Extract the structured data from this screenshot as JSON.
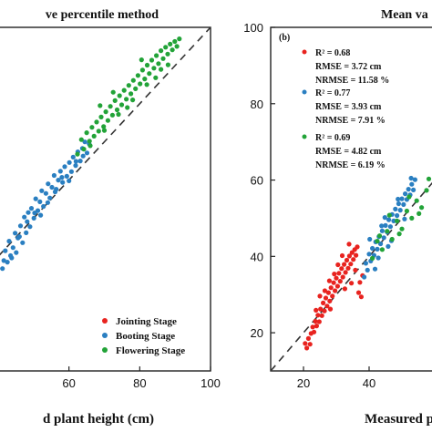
{
  "colors": {
    "jointing": "#e8231f",
    "booting": "#2a7fc1",
    "flowering": "#22a338",
    "frame": "#222222",
    "reference_line": "#333333"
  },
  "chart_data": [
    {
      "panel": "left",
      "type": "scatter",
      "title": "ve percentile method",
      "xlabel": "d plant height (cm)",
      "ylabel": "",
      "xlim": [
        40,
        100
      ],
      "ylim": [
        10,
        100
      ],
      "xticks": [
        "60",
        "80",
        "100"
      ],
      "yticks": [],
      "reference_line": "1:1 dashed",
      "legend_position": "bottom-right",
      "series": [
        {
          "name": "Jointing Stage",
          "color_key": "jointing",
          "points": []
        },
        {
          "name": "Booting Stage",
          "color_key": "booting",
          "points": [
            [
              40.5,
              37.2
            ],
            [
              41.2,
              36.8
            ],
            [
              42.0,
              41.5
            ],
            [
              42.6,
              38.5
            ],
            [
              43.1,
              44.0
            ],
            [
              43.5,
              40.2
            ],
            [
              44.2,
              42.3
            ],
            [
              44.8,
              46.1
            ],
            [
              45.1,
              41.0
            ],
            [
              45.6,
              44.8
            ],
            [
              46.3,
              48.0
            ],
            [
              46.9,
              43.6
            ],
            [
              47.4,
              50.3
            ],
            [
              47.9,
              46.2
            ],
            [
              48.5,
              51.5
            ],
            [
              49.0,
              47.8
            ],
            [
              49.4,
              52.6
            ],
            [
              50.1,
              50.0
            ],
            [
              50.6,
              55.1
            ],
            [
              51.2,
              52.0
            ],
            [
              51.8,
              54.3
            ],
            [
              52.3,
              57.2
            ],
            [
              52.8,
              53.1
            ],
            [
              53.5,
              56.5
            ],
            [
              54.1,
              59.0
            ],
            [
              54.6,
              55.3
            ],
            [
              55.2,
              58.1
            ],
            [
              55.8,
              61.2
            ],
            [
              56.4,
              57.6
            ],
            [
              57.0,
              60.0
            ],
            [
              57.6,
              62.3
            ],
            [
              58.2,
              59.4
            ],
            [
              58.8,
              63.5
            ],
            [
              59.4,
              61.0
            ],
            [
              60.1,
              64.6
            ],
            [
              60.7,
              62.2
            ],
            [
              61.2,
              66.0
            ],
            [
              61.9,
              63.8
            ],
            [
              62.5,
              67.4
            ],
            [
              63.2,
              65.0
            ],
            [
              63.8,
              68.3
            ],
            [
              64.5,
              70.0
            ],
            [
              65.1,
              67.1
            ],
            [
              65.7,
              69.5
            ],
            [
              41.6,
              38.9
            ],
            [
              43.8,
              39.6
            ],
            [
              46.0,
              45.2
            ],
            [
              48.2,
              49.1
            ],
            [
              50.3,
              51.4
            ],
            [
              52.0,
              50.8
            ],
            [
              54.0,
              54.1
            ],
            [
              56.1,
              56.9
            ],
            [
              58.0,
              60.7
            ],
            [
              60.0,
              59.8
            ],
            [
              62.0,
              64.9
            ],
            [
              64.0,
              66.3
            ]
          ]
        },
        {
          "name": "Flowering Stage",
          "color_key": "flowering",
          "points": [
            [
              62.4,
              66.8
            ],
            [
              63.5,
              70.6
            ],
            [
              64.2,
              68.1
            ],
            [
              65.0,
              72.4
            ],
            [
              65.8,
              70.2
            ],
            [
              66.5,
              73.8
            ],
            [
              67.1,
              71.5
            ],
            [
              67.8,
              75.2
            ],
            [
              68.4,
              72.8
            ],
            [
              69.1,
              76.5
            ],
            [
              69.8,
              74.0
            ],
            [
              70.4,
              77.9
            ],
            [
              71.0,
              75.6
            ],
            [
              71.7,
              79.3
            ],
            [
              72.3,
              77.0
            ],
            [
              73.0,
              80.8
            ],
            [
              73.6,
              78.4
            ],
            [
              74.3,
              82.1
            ],
            [
              74.9,
              79.7
            ],
            [
              75.6,
              83.5
            ],
            [
              76.2,
              81.2
            ],
            [
              76.9,
              84.8
            ],
            [
              77.5,
              82.6
            ],
            [
              78.2,
              86.1
            ],
            [
              78.8,
              83.9
            ],
            [
              79.5,
              87.4
            ],
            [
              80.1,
              85.2
            ],
            [
              80.8,
              88.8
            ],
            [
              81.4,
              86.5
            ],
            [
              82.1,
              90.1
            ],
            [
              82.7,
              87.9
            ],
            [
              83.4,
              91.4
            ],
            [
              84.0,
              89.3
            ],
            [
              84.7,
              92.6
            ],
            [
              85.3,
              90.5
            ],
            [
              86.0,
              93.9
            ],
            [
              86.6,
              91.8
            ],
            [
              87.3,
              94.8
            ],
            [
              87.9,
              93.0
            ],
            [
              88.6,
              95.6
            ],
            [
              89.2,
              94.1
            ],
            [
              89.9,
              96.3
            ],
            [
              90.5,
              95.0
            ],
            [
              91.2,
              97.0
            ],
            [
              66.0,
              69.0
            ],
            [
              70.0,
              73.0
            ],
            [
              74.0,
              77.2
            ],
            [
              78.0,
              81.0
            ],
            [
              82.0,
              85.0
            ],
            [
              86.0,
              89.0
            ],
            [
              72.5,
              83.0
            ],
            [
              76.5,
              79.0
            ],
            [
              80.5,
              91.5
            ],
            [
              84.5,
              86.8
            ],
            [
              68.8,
              79.5
            ],
            [
              88.0,
              90.2
            ]
          ]
        }
      ]
    },
    {
      "panel": "right",
      "panel_label": "(b)",
      "type": "scatter",
      "title": "Mean va",
      "xlabel": "Measured p",
      "ylabel": "",
      "xlim": [
        10,
        60
      ],
      "ylim": [
        10,
        100
      ],
      "xticks": [
        "20",
        "40"
      ],
      "yticks": [
        "20",
        "40",
        "60",
        "80",
        "100"
      ],
      "reference_line": "1:1 dashed",
      "stats": [
        {
          "color_key": "jointing",
          "r2": "R² = 0.68",
          "rmse": "RMSE = 3.72 cm",
          "nrmse": "NRMSE = 11.58 %"
        },
        {
          "color_key": "booting",
          "r2": "R² = 0.77",
          "rmse": "RMSE = 3.93 cm",
          "nrmse": "NRMSE = 7.91 %"
        },
        {
          "color_key": "flowering",
          "r2": "R² = 0.69",
          "rmse": "RMSE = 4.82 cm",
          "nrmse": "NRMSE = 6.19 %"
        }
      ],
      "series": [
        {
          "name": "Jointing Stage",
          "color_key": "jointing",
          "points": [
            [
              20.5,
              17.2
            ],
            [
              21.0,
              16.0
            ],
            [
              21.5,
              18.5
            ],
            [
              22.0,
              17.0
            ],
            [
              22.3,
              19.8
            ],
            [
              22.8,
              21.5
            ],
            [
              23.2,
              20.2
            ],
            [
              23.6,
              23.0
            ],
            [
              24.0,
              21.8
            ],
            [
              24.4,
              24.6
            ],
            [
              24.8,
              22.9
            ],
            [
              25.2,
              26.2
            ],
            [
              25.6,
              24.5
            ],
            [
              26.0,
              27.8
            ],
            [
              26.4,
              25.7
            ],
            [
              26.8,
              29.1
            ],
            [
              27.2,
              27.0
            ],
            [
              27.6,
              30.5
            ],
            [
              28.0,
              28.3
            ],
            [
              28.4,
              31.8
            ],
            [
              28.8,
              29.6
            ],
            [
              29.2,
              33.1
            ],
            [
              29.6,
              31.0
            ],
            [
              30.0,
              34.3
            ],
            [
              30.4,
              32.2
            ],
            [
              30.8,
              35.6
            ],
            [
              31.2,
              33.5
            ],
            [
              31.6,
              36.8
            ],
            [
              32.0,
              34.6
            ],
            [
              32.4,
              37.9
            ],
            [
              32.8,
              35.8
            ],
            [
              33.2,
              39.0
            ],
            [
              33.6,
              36.9
            ],
            [
              34.0,
              40.1
            ],
            [
              34.4,
              38.0
            ],
            [
              34.8,
              41.0
            ],
            [
              35.2,
              39.2
            ],
            [
              35.6,
              41.8
            ],
            [
              36.0,
              40.3
            ],
            [
              36.4,
              42.5
            ],
            [
              36.8,
              30.5
            ],
            [
              37.2,
              33.2
            ],
            [
              37.6,
              29.4
            ],
            [
              38.0,
              35.0
            ],
            [
              26.5,
              31.0
            ],
            [
              28.2,
              26.2
            ],
            [
              30.5,
              37.8
            ],
            [
              32.6,
              31.5
            ],
            [
              34.6,
              33.0
            ],
            [
              25.0,
              29.6
            ],
            [
              29.4,
              35.4
            ],
            [
              33.9,
              43.2
            ],
            [
              23.8,
              25.9
            ],
            [
              27.9,
              33.6
            ],
            [
              31.8,
              40.2
            ],
            [
              35.8,
              36.4
            ]
          ]
        },
        {
          "name": "Booting Stage",
          "color_key": "booting",
          "points": [
            [
              38.5,
              34.6
            ],
            [
              39.0,
              38.2
            ],
            [
              39.5,
              36.4
            ],
            [
              40.0,
              40.6
            ],
            [
              40.5,
              38.8
            ],
            [
              41.0,
              42.1
            ],
            [
              41.5,
              40.3
            ],
            [
              42.0,
              43.8
            ],
            [
              42.5,
              41.9
            ],
            [
              43.0,
              45.2
            ],
            [
              43.5,
              43.3
            ],
            [
              44.0,
              46.7
            ],
            [
              44.5,
              44.9
            ],
            [
              45.0,
              48.1
            ],
            [
              45.5,
              46.4
            ],
            [
              46.0,
              49.6
            ],
            [
              46.5,
              47.8
            ],
            [
              47.0,
              51.0
            ],
            [
              47.5,
              49.3
            ],
            [
              48.0,
              52.4
            ],
            [
              48.5,
              50.7
            ],
            [
              49.0,
              53.8
            ],
            [
              49.5,
              52.1
            ],
            [
              50.0,
              55.1
            ],
            [
              50.5,
              53.6
            ],
            [
              51.0,
              56.4
            ],
            [
              51.5,
              54.9
            ],
            [
              52.0,
              57.6
            ],
            [
              52.5,
              56.1
            ],
            [
              53.0,
              58.9
            ],
            [
              53.5,
              57.4
            ],
            [
              54.0,
              60.1
            ],
            [
              40.2,
              44.5
            ],
            [
              42.8,
              39.6
            ],
            [
              44.8,
              50.2
            ],
            [
              46.8,
              44.1
            ],
            [
              48.8,
              55.0
            ],
            [
              50.8,
              49.8
            ],
            [
              52.8,
              60.5
            ],
            [
              41.8,
              36.7
            ],
            [
              43.8,
              48.0
            ],
            [
              45.8,
              42.6
            ]
          ]
        },
        {
          "name": "Flowering Stage",
          "color_key": "flowering",
          "points": [
            [
              41.0,
              39.5
            ],
            [
              42.5,
              44.0
            ],
            [
              44.0,
              41.8
            ],
            [
              45.5,
              46.6
            ],
            [
              47.0,
              44.5
            ],
            [
              48.5,
              49.3
            ],
            [
              50.0,
              47.2
            ],
            [
              51.5,
              51.9
            ],
            [
              53.0,
              50.0
            ],
            [
              54.5,
              54.6
            ],
            [
              56.0,
              52.8
            ],
            [
              57.5,
              57.3
            ],
            [
              59.0,
              55.6
            ],
            [
              60.0,
              59.5
            ],
            [
              46.2,
              50.8
            ],
            [
              49.2,
              45.9
            ],
            [
              52.2,
              55.6
            ],
            [
              55.2,
              51.2
            ],
            [
              58.2,
              60.3
            ],
            [
              43.2,
              45.4
            ]
          ]
        }
      ]
    }
  ]
}
